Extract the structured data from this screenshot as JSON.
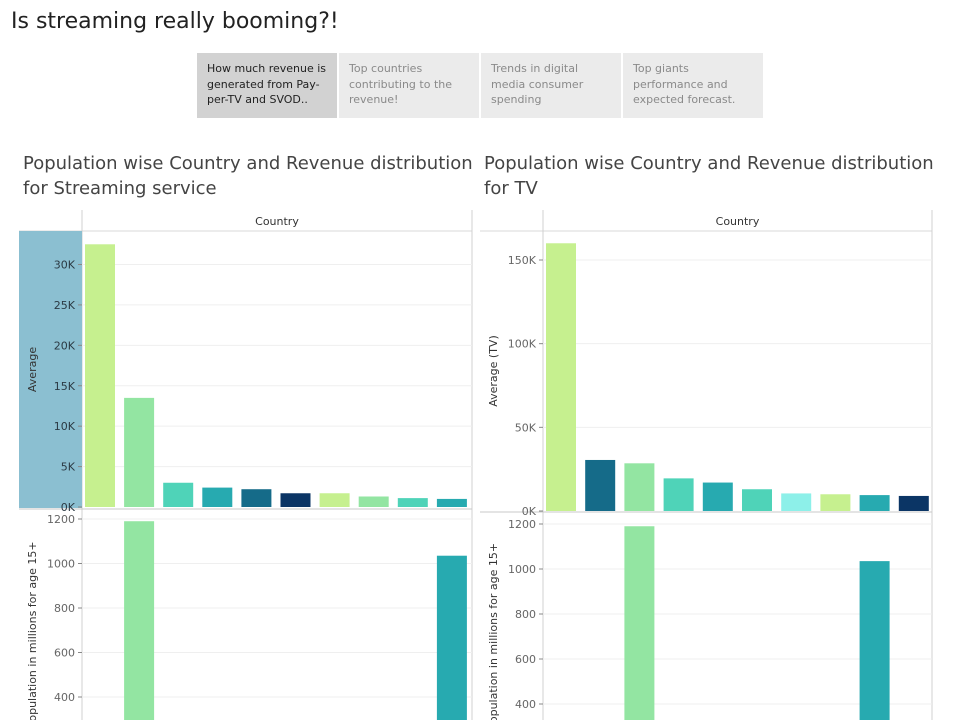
{
  "dashboard": {
    "title": "Is streaming really booming?!",
    "tabs": [
      {
        "label": "How much revenue is generated from Pay-per-TV and SVOD..",
        "active": true
      },
      {
        "label": "Top countries contributing to the revenue!",
        "active": false
      },
      {
        "label": "Trends in digital media consumer spending",
        "active": false
      },
      {
        "label": "Top giants performance and expected forecast.",
        "active": false
      }
    ]
  },
  "colors": {
    "light_green": "#c6f08f",
    "mint": "#93e5a2",
    "turquoise": "#4fd3b8",
    "teal": "#27aab0",
    "dark_teal": "#156b89",
    "navy": "#0b3565",
    "aqua": "#8df0e9",
    "axis_highlight": "#8bbfd1"
  },
  "chart_data": [
    {
      "type": "bar",
      "title": "Population wise Country and Revenue distribution\nfor Streaming service",
      "column_header": "Country",
      "top": {
        "ylabel": "Average",
        "ylim": [
          0,
          33000
        ],
        "ticks": [
          0,
          5000,
          10000,
          15000,
          20000,
          25000,
          30000
        ],
        "tick_labels": [
          "0K",
          "5K",
          "10K",
          "15K",
          "20K",
          "25K",
          "30K"
        ],
        "values": [
          32500,
          13500,
          3000,
          2400,
          2200,
          1700,
          1700,
          1300,
          1100,
          1000
        ],
        "colors": [
          "#c6f08f",
          "#93e5a2",
          "#4fd3b8",
          "#27aab0",
          "#156b89",
          "#0b3565",
          "#c6f08f",
          "#93e5a2",
          "#4fd3b8",
          "#27aab0"
        ]
      },
      "bottom": {
        "ylabel": "population in millions for age 15+",
        "ticks": [
          400,
          600,
          800,
          1000,
          1200
        ],
        "tick_labels": [
          "400",
          "600",
          "800",
          "1000",
          "1200"
        ],
        "values": [
          null,
          1190,
          null,
          null,
          null,
          null,
          null,
          null,
          null,
          1035
        ],
        "colors": [
          "#c6f08f",
          "#93e5a2",
          "#4fd3b8",
          "#27aab0",
          "#156b89",
          "#0b3565",
          "#c6f08f",
          "#93e5a2",
          "#4fd3b8",
          "#27aab0"
        ]
      }
    },
    {
      "type": "bar",
      "title": "Population wise Country and Revenue distribution\nfor TV",
      "column_header": "Country",
      "top": {
        "ylabel": "Average (TV)",
        "ylim": [
          0,
          162000
        ],
        "ticks": [
          0,
          50000,
          100000,
          150000
        ],
        "tick_labels": [
          "0K",
          "50K",
          "100K",
          "150K"
        ],
        "values": [
          160000,
          30500,
          28500,
          19500,
          17000,
          13000,
          10500,
          10000,
          9500,
          9000
        ],
        "colors": [
          "#c6f08f",
          "#156b89",
          "#93e5a2",
          "#4fd3b8",
          "#27aab0",
          "#4fd3b8",
          "#8df0e9",
          "#c6f08f",
          "#27aab0",
          "#0b3565"
        ]
      },
      "bottom": {
        "ylabel": "population in millions for age 15+",
        "ticks": [
          400,
          600,
          800,
          1000,
          1200
        ],
        "tick_labels": [
          "400",
          "600",
          "800",
          "1000",
          "1200"
        ],
        "values": [
          null,
          null,
          1190,
          null,
          null,
          null,
          null,
          null,
          1035,
          null
        ],
        "colors": [
          "#c6f08f",
          "#156b89",
          "#93e5a2",
          "#4fd3b8",
          "#27aab0",
          "#4fd3b8",
          "#8df0e9",
          "#c6f08f",
          "#27aab0",
          "#0b3565"
        ]
      }
    }
  ]
}
